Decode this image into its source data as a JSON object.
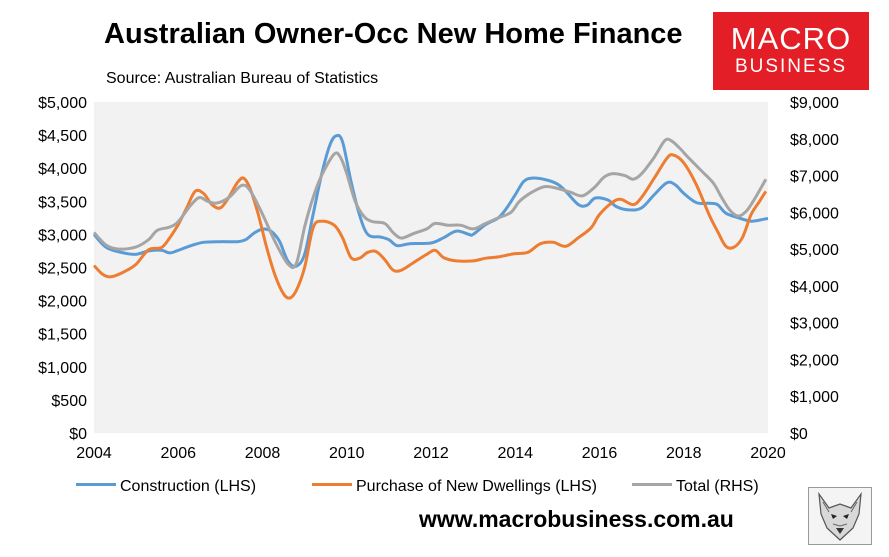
{
  "header": {
    "title": "Australian Owner-Occ New Home Finance",
    "subtitle": "Source: Australian Bureau of Statistics"
  },
  "logo": {
    "line1": "MACRO",
    "line2": "BUSINESS",
    "bg_color": "#e41e26"
  },
  "footer": {
    "url": "www.macrobusiness.com.au",
    "mascot_icon": "wolf-head-icon"
  },
  "chart_data": {
    "type": "line",
    "title": "Australian Owner-Occ New Home Finance",
    "subtitle": "Source: Australian Bureau of Statistics",
    "x_range": [
      2004,
      2020
    ],
    "x_ticks": [
      "2004",
      "2006",
      "2008",
      "2010",
      "2012",
      "2014",
      "2016",
      "2018",
      "2020"
    ],
    "y_left": {
      "range": [
        0,
        5000
      ],
      "ticks": [
        "$0",
        "$500",
        "$1,000",
        "$1,500",
        "$2,000",
        "$2,500",
        "$3,000",
        "$3,500",
        "$4,000",
        "$4,500",
        "$5,000"
      ]
    },
    "y_right": {
      "range": [
        0,
        9000
      ],
      "ticks": [
        "$0",
        "$1,000",
        "$2,000",
        "$3,000",
        "$4,000",
        "$5,000",
        "$6,000",
        "$7,000",
        "$8,000",
        "$9,000"
      ]
    },
    "grid": false,
    "plot_background": "#f2f2f2",
    "legend_position": "bottom",
    "series": [
      {
        "name": "Construction (LHS)",
        "axis": "left",
        "color": "#5b9bd5",
        "points": [
          [
            2004.0,
            3000
          ],
          [
            2004.3,
            2800
          ],
          [
            2004.7,
            2720
          ],
          [
            2005.0,
            2700
          ],
          [
            2005.3,
            2750
          ],
          [
            2005.6,
            2760
          ],
          [
            2005.8,
            2720
          ],
          [
            2006.0,
            2760
          ],
          [
            2006.3,
            2830
          ],
          [
            2006.6,
            2880
          ],
          [
            2007.0,
            2890
          ],
          [
            2007.4,
            2890
          ],
          [
            2007.6,
            2920
          ],
          [
            2007.8,
            3020
          ],
          [
            2008.0,
            3080
          ],
          [
            2008.2,
            3050
          ],
          [
            2008.4,
            2900
          ],
          [
            2008.6,
            2600
          ],
          [
            2008.8,
            2520
          ],
          [
            2009.0,
            2700
          ],
          [
            2009.2,
            3300
          ],
          [
            2009.4,
            3900
          ],
          [
            2009.6,
            4350
          ],
          [
            2009.75,
            4490
          ],
          [
            2009.9,
            4400
          ],
          [
            2010.1,
            3800
          ],
          [
            2010.3,
            3300
          ],
          [
            2010.5,
            3000
          ],
          [
            2010.8,
            2960
          ],
          [
            2011.0,
            2920
          ],
          [
            2011.2,
            2830
          ],
          [
            2011.5,
            2860
          ],
          [
            2012.0,
            2870
          ],
          [
            2012.3,
            2950
          ],
          [
            2012.6,
            3050
          ],
          [
            2012.9,
            3000
          ],
          [
            2013.0,
            3000
          ],
          [
            2013.3,
            3150
          ],
          [
            2013.6,
            3250
          ],
          [
            2013.8,
            3400
          ],
          [
            2014.0,
            3600
          ],
          [
            2014.2,
            3800
          ],
          [
            2014.4,
            3850
          ],
          [
            2014.7,
            3830
          ],
          [
            2015.0,
            3760
          ],
          [
            2015.2,
            3650
          ],
          [
            2015.5,
            3450
          ],
          [
            2015.7,
            3440
          ],
          [
            2015.9,
            3550
          ],
          [
            2016.2,
            3520
          ],
          [
            2016.4,
            3420
          ],
          [
            2016.7,
            3370
          ],
          [
            2017.0,
            3400
          ],
          [
            2017.3,
            3600
          ],
          [
            2017.6,
            3780
          ],
          [
            2017.8,
            3750
          ],
          [
            2018.0,
            3620
          ],
          [
            2018.3,
            3480
          ],
          [
            2018.6,
            3470
          ],
          [
            2018.8,
            3450
          ],
          [
            2019.0,
            3320
          ],
          [
            2019.3,
            3250
          ],
          [
            2019.6,
            3200
          ],
          [
            2019.9,
            3230
          ],
          [
            2020.0,
            3240
          ]
        ]
      },
      {
        "name": "Purchase of New Dwellings (LHS)",
        "axis": "left",
        "color": "#ed7d31",
        "points": [
          [
            2004.0,
            2530
          ],
          [
            2004.2,
            2400
          ],
          [
            2004.4,
            2360
          ],
          [
            2004.7,
            2430
          ],
          [
            2005.0,
            2550
          ],
          [
            2005.3,
            2770
          ],
          [
            2005.6,
            2800
          ],
          [
            2005.8,
            2950
          ],
          [
            2006.0,
            3150
          ],
          [
            2006.2,
            3400
          ],
          [
            2006.4,
            3650
          ],
          [
            2006.6,
            3620
          ],
          [
            2006.8,
            3450
          ],
          [
            2007.0,
            3400
          ],
          [
            2007.2,
            3560
          ],
          [
            2007.4,
            3780
          ],
          [
            2007.55,
            3850
          ],
          [
            2007.7,
            3700
          ],
          [
            2007.9,
            3300
          ],
          [
            2008.1,
            2800
          ],
          [
            2008.3,
            2380
          ],
          [
            2008.5,
            2100
          ],
          [
            2008.65,
            2040
          ],
          [
            2008.8,
            2150
          ],
          [
            2009.0,
            2500
          ],
          [
            2009.2,
            3100
          ],
          [
            2009.4,
            3200
          ],
          [
            2009.7,
            3140
          ],
          [
            2009.9,
            2950
          ],
          [
            2010.1,
            2650
          ],
          [
            2010.3,
            2640
          ],
          [
            2010.5,
            2730
          ],
          [
            2010.7,
            2740
          ],
          [
            2010.9,
            2620
          ],
          [
            2011.1,
            2460
          ],
          [
            2011.3,
            2460
          ],
          [
            2011.6,
            2580
          ],
          [
            2011.9,
            2700
          ],
          [
            2012.1,
            2760
          ],
          [
            2012.3,
            2650
          ],
          [
            2012.6,
            2600
          ],
          [
            2013.0,
            2600
          ],
          [
            2013.3,
            2640
          ],
          [
            2013.6,
            2660
          ],
          [
            2013.9,
            2700
          ],
          [
            2014.0,
            2710
          ],
          [
            2014.3,
            2730
          ],
          [
            2014.6,
            2860
          ],
          [
            2014.9,
            2880
          ],
          [
            2015.2,
            2820
          ],
          [
            2015.5,
            2950
          ],
          [
            2015.8,
            3100
          ],
          [
            2016.0,
            3300
          ],
          [
            2016.3,
            3480
          ],
          [
            2016.5,
            3530
          ],
          [
            2016.8,
            3450
          ],
          [
            2017.0,
            3560
          ],
          [
            2017.3,
            3850
          ],
          [
            2017.6,
            4150
          ],
          [
            2017.75,
            4200
          ],
          [
            2018.0,
            4080
          ],
          [
            2018.3,
            3750
          ],
          [
            2018.6,
            3300
          ],
          [
            2018.8,
            3050
          ],
          [
            2019.0,
            2820
          ],
          [
            2019.2,
            2810
          ],
          [
            2019.4,
            2960
          ],
          [
            2019.6,
            3300
          ],
          [
            2019.8,
            3500
          ],
          [
            2019.95,
            3650
          ]
        ]
      },
      {
        "name": "Total (RHS)",
        "axis": "right",
        "color": "#a5a5a5",
        "points": [
          [
            2004.0,
            5450
          ],
          [
            2004.3,
            5100
          ],
          [
            2004.6,
            5000
          ],
          [
            2005.0,
            5060
          ],
          [
            2005.3,
            5260
          ],
          [
            2005.5,
            5510
          ],
          [
            2005.8,
            5600
          ],
          [
            2006.0,
            5750
          ],
          [
            2006.3,
            6200
          ],
          [
            2006.5,
            6400
          ],
          [
            2006.7,
            6300
          ],
          [
            2006.9,
            6250
          ],
          [
            2007.2,
            6400
          ],
          [
            2007.5,
            6730
          ],
          [
            2007.7,
            6600
          ],
          [
            2008.0,
            5950
          ],
          [
            2008.3,
            5200
          ],
          [
            2008.6,
            4600
          ],
          [
            2008.8,
            4600
          ],
          [
            2009.0,
            5600
          ],
          [
            2009.2,
            6400
          ],
          [
            2009.4,
            7000
          ],
          [
            2009.7,
            7580
          ],
          [
            2009.85,
            7500
          ],
          [
            2010.0,
            7050
          ],
          [
            2010.2,
            6300
          ],
          [
            2010.4,
            5900
          ],
          [
            2010.6,
            5750
          ],
          [
            2010.9,
            5700
          ],
          [
            2011.1,
            5450
          ],
          [
            2011.3,
            5300
          ],
          [
            2011.6,
            5430
          ],
          [
            2011.9,
            5550
          ],
          [
            2012.1,
            5700
          ],
          [
            2012.4,
            5650
          ],
          [
            2012.7,
            5650
          ],
          [
            2013.0,
            5550
          ],
          [
            2013.3,
            5700
          ],
          [
            2013.6,
            5850
          ],
          [
            2013.9,
            6000
          ],
          [
            2014.1,
            6300
          ],
          [
            2014.4,
            6550
          ],
          [
            2014.7,
            6700
          ],
          [
            2015.0,
            6650
          ],
          [
            2015.3,
            6550
          ],
          [
            2015.6,
            6450
          ],
          [
            2015.9,
            6700
          ],
          [
            2016.1,
            6950
          ],
          [
            2016.3,
            7050
          ],
          [
            2016.6,
            7000
          ],
          [
            2016.8,
            6900
          ],
          [
            2017.0,
            7050
          ],
          [
            2017.3,
            7500
          ],
          [
            2017.55,
            7950
          ],
          [
            2017.7,
            7950
          ],
          [
            2017.9,
            7750
          ],
          [
            2018.1,
            7500
          ],
          [
            2018.4,
            7150
          ],
          [
            2018.7,
            6800
          ],
          [
            2018.9,
            6400
          ],
          [
            2019.1,
            6050
          ],
          [
            2019.3,
            5900
          ],
          [
            2019.5,
            6050
          ],
          [
            2019.7,
            6400
          ],
          [
            2019.95,
            6900
          ]
        ]
      }
    ]
  }
}
